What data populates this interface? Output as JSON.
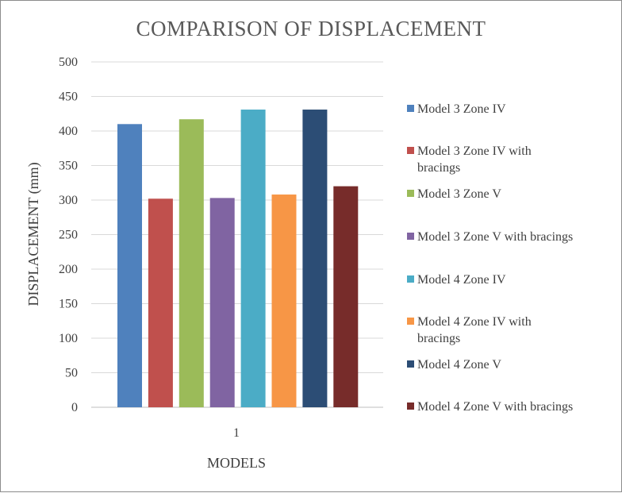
{
  "chart_data": {
    "type": "bar",
    "title": "COMPARISON OF DISPLACEMENT",
    "xlabel": "MODELS",
    "ylabel": "DISPLACEMENT (mm)",
    "categories": [
      "1"
    ],
    "ylim": [
      0,
      500
    ],
    "yticks": [
      0,
      50,
      100,
      150,
      200,
      250,
      300,
      350,
      400,
      450,
      500
    ],
    "grid": true,
    "legend_position": "right",
    "series": [
      {
        "name": "Model  3 Zone IV",
        "legend_lines": [
          "Model  3 Zone IV"
        ],
        "values": [
          410
        ],
        "color": "#4f81bd"
      },
      {
        "name": "Model  3 Zone IV with bracings",
        "legend_lines": [
          "Model  3 Zone IV with",
          "bracings"
        ],
        "values": [
          302
        ],
        "color": "#c0504d"
      },
      {
        "name": "Model  3 Zone V",
        "legend_lines": [
          "Model  3 Zone V"
        ],
        "values": [
          417
        ],
        "color": "#9bbb59"
      },
      {
        "name": "Model  3 Zone V with bracings",
        "legend_lines": [
          "Model  3 Zone V with bracings"
        ],
        "values": [
          303
        ],
        "color": "#8064a2"
      },
      {
        "name": "Model  4 Zone IV",
        "legend_lines": [
          "Model  4 Zone IV"
        ],
        "values": [
          431
        ],
        "color": "#4bacc6"
      },
      {
        "name": "Model  4 Zone IV with bracings",
        "legend_lines": [
          "Model  4 Zone IV with",
          "bracings"
        ],
        "values": [
          308
        ],
        "color": "#f79646"
      },
      {
        "name": "Model  4 Zone V",
        "legend_lines": [
          "Model  4 Zone V"
        ],
        "values": [
          431
        ],
        "color": "#2c4d75"
      },
      {
        "name": "Model  4 Zone V with bracings",
        "legend_lines": [
          "Model  4 Zone V with bracings"
        ],
        "values": [
          320
        ],
        "color": "#772c2a"
      }
    ]
  }
}
